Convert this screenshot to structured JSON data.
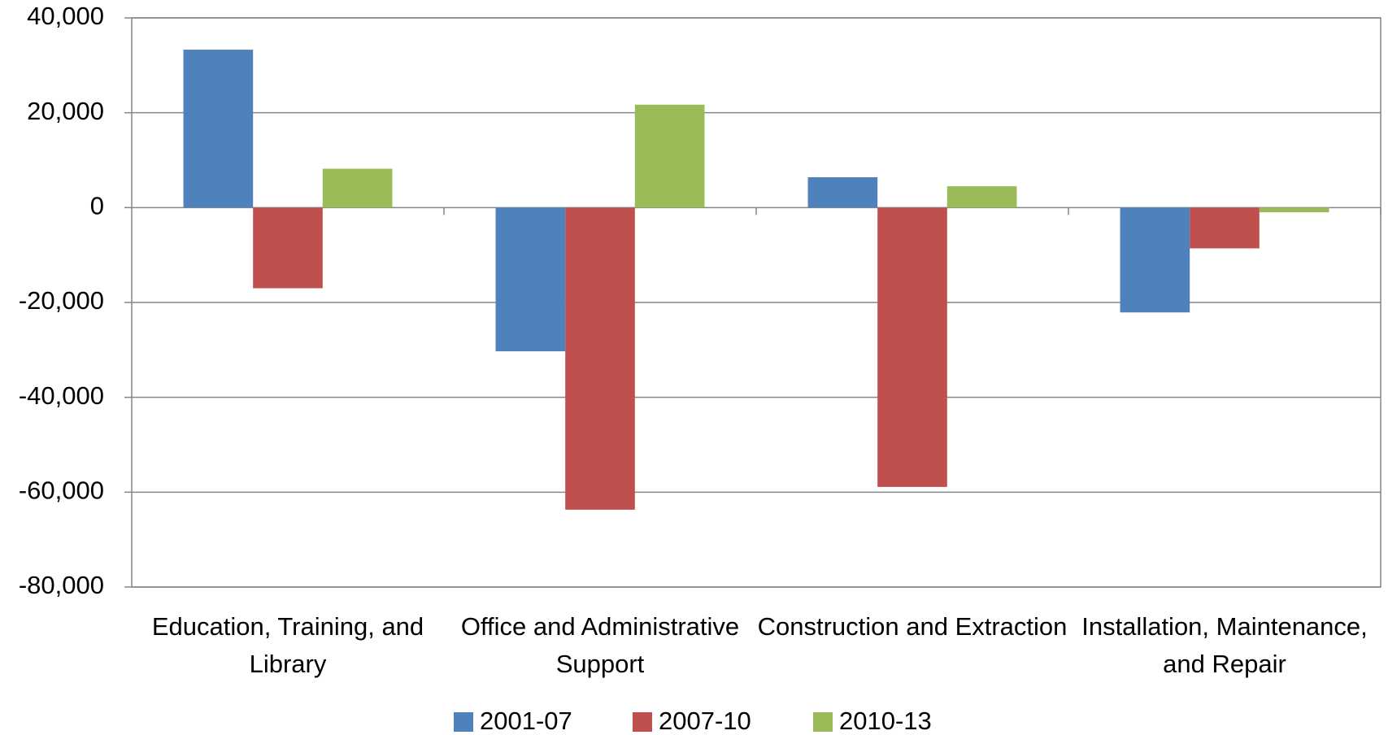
{
  "chart_data": {
    "type": "bar",
    "categories": [
      "Education, Training, and Library",
      "Office and Administrative Support",
      "Construction and Extraction",
      "Installation, Maintenance, and Repair"
    ],
    "series": [
      {
        "name": "2001-07",
        "color": "#4f81bd",
        "values": [
          33300,
          -30300,
          6400,
          -22100
        ]
      },
      {
        "name": "2007-10",
        "color": "#c0504d",
        "values": [
          -17000,
          -63700,
          -58900,
          -8600
        ]
      },
      {
        "name": "2010-13",
        "color": "#9bbb59",
        "values": [
          8200,
          21700,
          4500,
          -1000
        ]
      }
    ],
    "ylim": [
      -80000,
      40000
    ],
    "yticks": [
      {
        "value": -80000,
        "label": "-80,000"
      },
      {
        "value": -60000,
        "label": "-60,000"
      },
      {
        "value": -40000,
        "label": "-40,000"
      },
      {
        "value": -20000,
        "label": "-20,000"
      },
      0,
      {
        "value": 20000,
        "label": "20,000"
      },
      {
        "value": 40000,
        "label": "40,000"
      }
    ],
    "grid": true,
    "legend": "bottom"
  }
}
